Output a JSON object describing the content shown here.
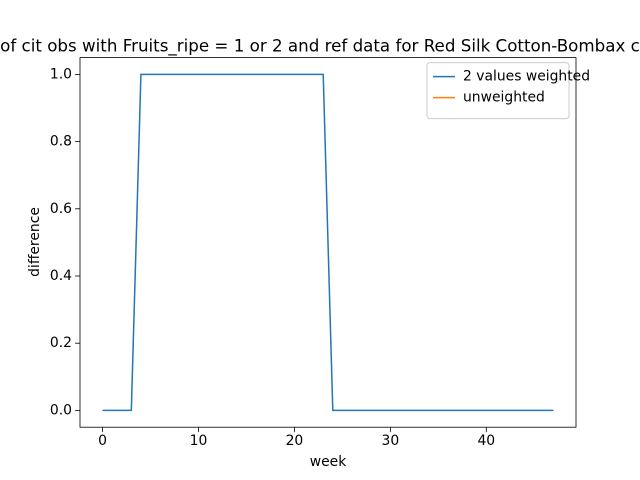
{
  "chart_data": {
    "type": "line",
    "title": "of cit obs with Fruits_ripe = 1 or 2 and ref data for Red Silk Cotton-Bombax c",
    "xlabel": "week",
    "ylabel": "difference",
    "x": [
      0,
      1,
      2,
      3,
      4,
      5,
      6,
      7,
      8,
      9,
      10,
      11,
      12,
      13,
      14,
      15,
      16,
      17,
      18,
      19,
      20,
      21,
      22,
      23,
      24,
      25,
      26,
      27,
      28,
      29,
      30,
      31,
      32,
      33,
      34,
      35,
      36,
      37,
      38,
      39,
      40,
      41,
      42,
      43,
      44,
      45,
      46,
      47
    ],
    "series": [
      {
        "name": "2 values weighted",
        "color": "#1f77b4",
        "values": [
          0,
          0,
          0,
          0,
          1,
          1,
          1,
          1,
          1,
          1,
          1,
          1,
          1,
          1,
          1,
          1,
          1,
          1,
          1,
          1,
          1,
          1,
          1,
          1,
          0,
          0,
          0,
          0,
          0,
          0,
          0,
          0,
          0,
          0,
          0,
          0,
          0,
          0,
          0,
          0,
          0,
          0,
          0,
          0,
          0,
          0,
          0,
          0
        ]
      },
      {
        "name": "unweighted",
        "color": "#ff7f0e",
        "values": [
          null,
          null,
          null,
          null,
          null,
          null,
          null,
          null,
          null,
          null,
          null,
          null,
          null,
          null,
          null,
          null,
          null,
          null,
          null,
          null,
          null,
          null,
          null,
          null,
          null,
          null,
          null,
          null,
          null,
          null,
          null,
          null,
          null,
          null,
          null,
          null,
          null,
          null,
          null,
          null,
          null,
          null,
          null,
          null,
          null,
          null,
          null,
          null
        ]
      }
    ],
    "xlim": [
      -2.35,
      49.35
    ],
    "xticks": [
      0,
      10,
      20,
      30,
      40
    ],
    "ylim": [
      -0.05,
      1.05
    ],
    "yticks": [
      {
        "value": 0,
        "label": "0.0"
      },
      {
        "value": 0.2,
        "label": "0.2"
      },
      {
        "value": 0.4,
        "label": "0.4"
      },
      {
        "value": 0.6,
        "label": "0.6"
      },
      {
        "value": 0.8,
        "label": "0.8"
      },
      {
        "value": 1,
        "label": "1.0"
      }
    ],
    "legend": "upper right",
    "grid": false
  }
}
